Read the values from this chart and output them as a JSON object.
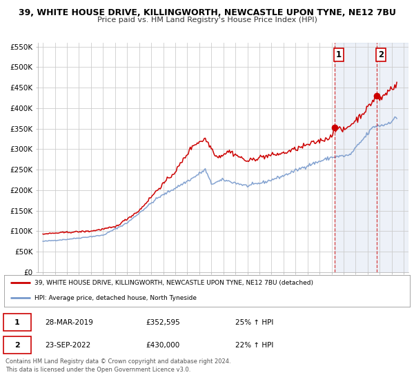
{
  "title": "39, WHITE HOUSE DRIVE, KILLINGWORTH, NEWCASTLE UPON TYNE, NE12 7BU",
  "subtitle": "Price paid vs. HM Land Registry's House Price Index (HPI)",
  "legend_line1": "39, WHITE HOUSE DRIVE, KILLINGWORTH, NEWCASTLE UPON TYNE, NE12 7BU (detached)",
  "legend_line2": "HPI: Average price, detached house, North Tyneside",
  "annotation1_date": "28-MAR-2019",
  "annotation1_price": "£352,595",
  "annotation1_hpi": "25% ↑ HPI",
  "annotation2_date": "23-SEP-2022",
  "annotation2_price": "£430,000",
  "annotation2_hpi": "22% ↑ HPI",
  "footer1": "Contains HM Land Registry data © Crown copyright and database right 2024.",
  "footer2": "This data is licensed under the Open Government Licence v3.0.",
  "red_color": "#cc0000",
  "blue_color": "#7799cc",
  "plot_bg_color": "#ffffff",
  "grid_color": "#cccccc",
  "annotation1_year": 2019.23,
  "annotation2_year": 2022.73,
  "annotation1_value": 352595,
  "annotation2_value": 430000,
  "yticks": [
    0,
    50000,
    100000,
    150000,
    200000,
    250000,
    300000,
    350000,
    400000,
    450000,
    500000,
    550000
  ],
  "ytick_labels": [
    "£0",
    "£50K",
    "£100K",
    "£150K",
    "£200K",
    "£250K",
    "£300K",
    "£350K",
    "£400K",
    "£450K",
    "£500K",
    "£550K"
  ],
  "xlim_start": 1994.6,
  "xlim_end": 2025.4,
  "ylim_max": 560000,
  "hpi_waypoints_x": [
    1995.0,
    1997.0,
    2000.0,
    2002.0,
    2004.5,
    2007.5,
    2008.5,
    2009.0,
    2010.0,
    2012.0,
    2013.5,
    2015.0,
    2017.0,
    2019.0,
    2020.5,
    2021.5,
    2022.5,
    2023.5,
    2024.3
  ],
  "hpi_waypoints_y": [
    75000,
    80000,
    90000,
    120000,
    180000,
    230000,
    250000,
    215000,
    225000,
    210000,
    220000,
    235000,
    260000,
    280000,
    285000,
    320000,
    355000,
    360000,
    375000
  ],
  "prop_waypoints_x": [
    1995.0,
    1997.0,
    1999.0,
    2001.0,
    2003.0,
    2004.5,
    2006.0,
    2007.5,
    2008.5,
    2009.5,
    2010.5,
    2012.0,
    2013.0,
    2015.0,
    2017.0,
    2019.0,
    2019.23,
    2020.0,
    2021.0,
    2022.0,
    2022.73,
    2023.0,
    2023.5,
    2024.0,
    2024.3
  ],
  "prop_waypoints_y": [
    93000,
    97000,
    100000,
    110000,
    150000,
    200000,
    245000,
    310000,
    325000,
    280000,
    295000,
    270000,
    280000,
    290000,
    310000,
    330000,
    352595,
    345000,
    370000,
    400000,
    430000,
    420000,
    435000,
    450000,
    455000
  ]
}
